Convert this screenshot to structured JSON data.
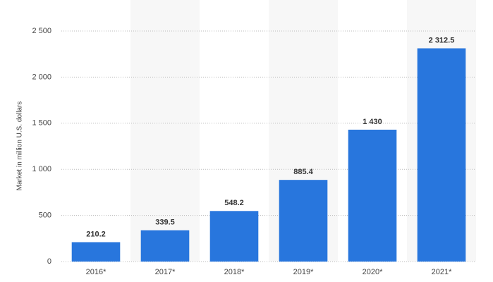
{
  "chart_data": {
    "type": "bar",
    "y_label": "Market in million U.S. dollars",
    "categories": [
      "2016*",
      "2017*",
      "2018*",
      "2019*",
      "2020*",
      "2021*"
    ],
    "values": [
      210.2,
      339.5,
      548.2,
      885.4,
      1430,
      2312.5
    ],
    "value_labels": [
      "210.2",
      "339.5",
      "548.2",
      "885.4",
      "1 430",
      "2 312.5"
    ],
    "color": "#2876dd",
    "ylim": [
      0,
      2500
    ],
    "yticks": [
      0,
      500,
      {
        "value": 1000,
        "label": "1 000"
      },
      {
        "value": 1500,
        "label": "1 500"
      },
      {
        "value": 2000,
        "label": "2 000"
      },
      {
        "value": 2500,
        "label": "2 500"
      }
    ],
    "grid": true
  }
}
